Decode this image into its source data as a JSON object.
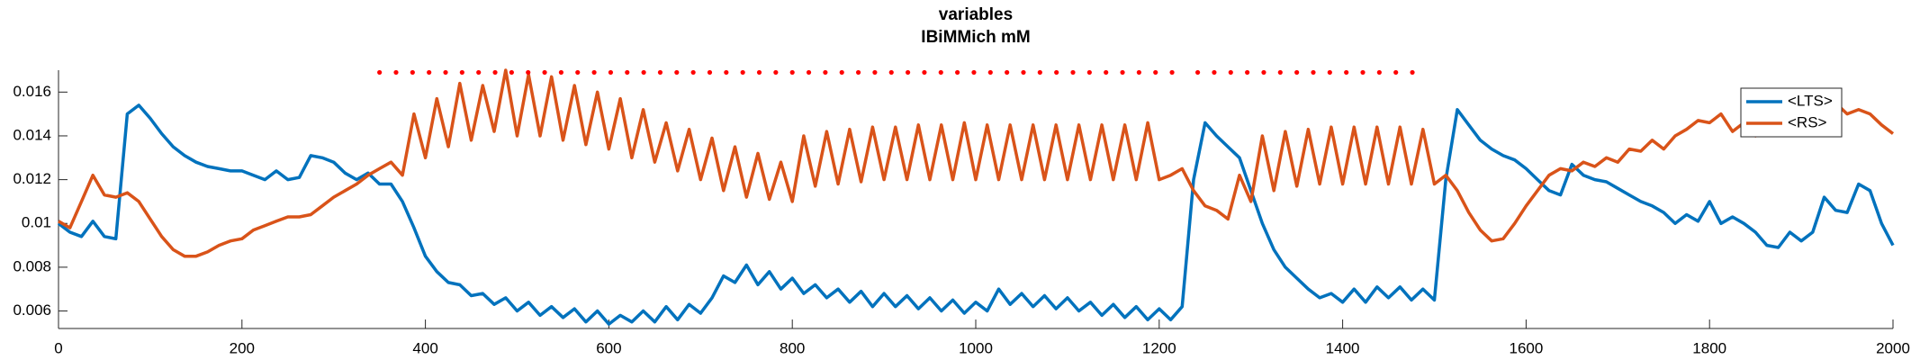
{
  "chart_data": {
    "type": "line",
    "title": "variables",
    "subtitle": "IBiMMich mM",
    "x": [
      0,
      12.5,
      25,
      37.5,
      50,
      62.5,
      75,
      87.5,
      100,
      112.5,
      125,
      137.5,
      150,
      162.5,
      175,
      187.5,
      200,
      212.5,
      225,
      237.5,
      250,
      262.5,
      275,
      287.5,
      300,
      312.5,
      325,
      337.5,
      350,
      362.5,
      375,
      387.5,
      400,
      412.5,
      425,
      437.5,
      450,
      462.5,
      475,
      487.5,
      500,
      512.5,
      525,
      537.5,
      550,
      562.5,
      575,
      587.5,
      600,
      612.5,
      625,
      637.5,
      650,
      662.5,
      675,
      687.5,
      700,
      712.5,
      725,
      737.5,
      750,
      762.5,
      775,
      787.5,
      800,
      812.5,
      825,
      837.5,
      850,
      862.5,
      875,
      887.5,
      900,
      912.5,
      925,
      937.5,
      950,
      962.5,
      975,
      987.5,
      1000,
      1012.5,
      1025,
      1037.5,
      1050,
      1062.5,
      1075,
      1087.5,
      1100,
      1112.5,
      1125,
      1137.5,
      1150,
      1162.5,
      1175,
      1187.5,
      1200,
      1212.5,
      1225,
      1237.5,
      1250,
      1262.5,
      1275,
      1287.5,
      1300,
      1312.5,
      1325,
      1337.5,
      1350,
      1362.5,
      1375,
      1387.5,
      1400,
      1412.5,
      1425,
      1437.5,
      1450,
      1462.5,
      1475,
      1487.5,
      1500,
      1512.5,
      1525,
      1537.5,
      1550,
      1562.5,
      1575,
      1587.5,
      1600,
      1612.5,
      1625,
      1637.5,
      1650,
      1662.5,
      1675,
      1687.5,
      1700,
      1712.5,
      1725,
      1737.5,
      1750,
      1762.5,
      1775,
      1787.5,
      1800,
      1812.5,
      1825,
      1837.5,
      1850,
      1862.5,
      1875,
      1887.5,
      1900,
      1912.5,
      1925,
      1937.5,
      1950,
      1962.5,
      1975,
      1987.5,
      2000
    ],
    "series": [
      {
        "name": "<LTS>",
        "color": "#0072bd",
        "values": [
          0.01,
          0.0096,
          0.0094,
          0.0101,
          0.0094,
          0.0093,
          0.015,
          0.0154,
          0.0148,
          0.0141,
          0.0135,
          0.0131,
          0.0128,
          0.0126,
          0.0125,
          0.0124,
          0.0124,
          0.0122,
          0.012,
          0.0124,
          0.012,
          0.0121,
          0.0131,
          0.013,
          0.0128,
          0.0123,
          0.012,
          0.0123,
          0.0118,
          0.0118,
          0.011,
          0.0098,
          0.0085,
          0.0078,
          0.0073,
          0.0072,
          0.0067,
          0.0068,
          0.0063,
          0.0066,
          0.006,
          0.0064,
          0.0058,
          0.0062,
          0.0057,
          0.0061,
          0.0055,
          0.006,
          0.0054,
          0.0058,
          0.0055,
          0.006,
          0.0055,
          0.0062,
          0.0056,
          0.0063,
          0.0059,
          0.0066,
          0.0076,
          0.0073,
          0.0081,
          0.0072,
          0.0078,
          0.007,
          0.0075,
          0.0068,
          0.0072,
          0.0066,
          0.007,
          0.0064,
          0.0069,
          0.0062,
          0.0068,
          0.0062,
          0.0067,
          0.0061,
          0.0066,
          0.006,
          0.0065,
          0.0059,
          0.0064,
          0.006,
          0.007,
          0.0063,
          0.0068,
          0.0062,
          0.0067,
          0.0061,
          0.0066,
          0.006,
          0.0064,
          0.0058,
          0.0063,
          0.0057,
          0.0062,
          0.0056,
          0.0061,
          0.0056,
          0.0062,
          0.012,
          0.0146,
          0.014,
          0.0135,
          0.013,
          0.0115,
          0.01,
          0.0088,
          0.008,
          0.0075,
          0.007,
          0.0066,
          0.0068,
          0.0064,
          0.007,
          0.0064,
          0.0071,
          0.0066,
          0.0071,
          0.0065,
          0.007,
          0.0065,
          0.012,
          0.0152,
          0.0145,
          0.0138,
          0.0134,
          0.0131,
          0.0129,
          0.0125,
          0.012,
          0.0115,
          0.0113,
          0.0127,
          0.0122,
          0.012,
          0.0119,
          0.0116,
          0.0113,
          0.011,
          0.0108,
          0.0105,
          0.01,
          0.0104,
          0.0101,
          0.011,
          0.01,
          0.0103,
          0.01,
          0.0096,
          0.009,
          0.0089,
          0.0096,
          0.0092,
          0.0096,
          0.0112,
          0.0106,
          0.0105,
          0.0118,
          0.0115,
          0.01,
          0.009
        ]
      },
      {
        "name": "<RS>",
        "color": "#d95319",
        "values": [
          0.0101,
          0.0098,
          0.011,
          0.0122,
          0.0113,
          0.0112,
          0.0114,
          0.011,
          0.0102,
          0.0094,
          0.0088,
          0.0085,
          0.0085,
          0.0087,
          0.009,
          0.0092,
          0.0093,
          0.0097,
          0.0099,
          0.0101,
          0.0103,
          0.0103,
          0.0104,
          0.0108,
          0.0112,
          0.0115,
          0.0118,
          0.0122,
          0.0125,
          0.0128,
          0.0122,
          0.015,
          0.013,
          0.0157,
          0.0135,
          0.0164,
          0.0138,
          0.0163,
          0.0142,
          0.017,
          0.014,
          0.0168,
          0.014,
          0.0167,
          0.0138,
          0.0163,
          0.0136,
          0.016,
          0.0134,
          0.0157,
          0.013,
          0.0152,
          0.0128,
          0.0146,
          0.0124,
          0.0143,
          0.012,
          0.0139,
          0.0115,
          0.0135,
          0.0112,
          0.0132,
          0.0111,
          0.0128,
          0.011,
          0.014,
          0.0117,
          0.0142,
          0.0118,
          0.0143,
          0.0119,
          0.0144,
          0.012,
          0.0144,
          0.012,
          0.0145,
          0.012,
          0.0145,
          0.012,
          0.0146,
          0.012,
          0.0145,
          0.012,
          0.0145,
          0.012,
          0.0145,
          0.012,
          0.0145,
          0.012,
          0.0145,
          0.012,
          0.0145,
          0.012,
          0.0145,
          0.012,
          0.0146,
          0.012,
          0.0122,
          0.0125,
          0.0115,
          0.0108,
          0.0106,
          0.0102,
          0.0122,
          0.011,
          0.014,
          0.0115,
          0.0142,
          0.0117,
          0.0143,
          0.0118,
          0.0144,
          0.0118,
          0.0144,
          0.0118,
          0.0144,
          0.0118,
          0.0144,
          0.0118,
          0.0143,
          0.0118,
          0.0122,
          0.0115,
          0.0105,
          0.0097,
          0.0092,
          0.0093,
          0.01,
          0.0108,
          0.0115,
          0.0122,
          0.0125,
          0.0124,
          0.0128,
          0.0126,
          0.013,
          0.0128,
          0.0134,
          0.0133,
          0.0138,
          0.0134,
          0.014,
          0.0143,
          0.0147,
          0.0146,
          0.015,
          0.0142,
          0.0146,
          0.014,
          0.0146,
          0.0142,
          0.0148,
          0.0145,
          0.0152,
          0.015,
          0.0155,
          0.015,
          0.0152,
          0.015,
          0.0145,
          0.0141
        ]
      }
    ],
    "markers": {
      "color": "#ff0000",
      "y": 0.0169,
      "x": [
        350,
        368,
        386,
        404,
        422,
        440,
        458,
        476,
        494,
        512,
        530,
        548,
        566,
        584,
        602,
        620,
        638,
        656,
        674,
        692,
        710,
        728,
        746,
        764,
        782,
        800,
        818,
        836,
        854,
        872,
        890,
        908,
        926,
        944,
        962,
        980,
        998,
        1016,
        1034,
        1052,
        1070,
        1088,
        1106,
        1124,
        1142,
        1160,
        1178,
        1196,
        1214,
        1242,
        1260,
        1278,
        1296,
        1314,
        1332,
        1350,
        1368,
        1386,
        1404,
        1422,
        1440,
        1458,
        1476
      ]
    },
    "xlim": [
      0,
      2000
    ],
    "xticks": [
      0,
      200,
      400,
      600,
      800,
      1000,
      1200,
      1400,
      1600,
      1800,
      2000
    ],
    "ylim": [
      0.0052,
      0.017
    ],
    "yticks": [
      0.006,
      0.008,
      0.01,
      0.012,
      0.014,
      0.016
    ],
    "legend": "northeast",
    "grid": false
  }
}
